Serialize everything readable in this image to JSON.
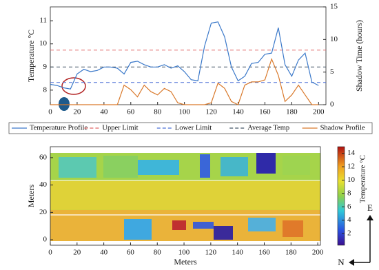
{
  "chart_data": [
    {
      "type": "line",
      "y_label": "Temperature °C",
      "y2_label": "Shadow Time (hours)",
      "x": [
        0,
        5,
        10,
        15,
        20,
        25,
        30,
        35,
        40,
        45,
        50,
        55,
        60,
        65,
        70,
        75,
        80,
        85,
        90,
        95,
        100,
        105,
        110,
        115,
        120,
        125,
        130,
        135,
        140,
        145,
        150,
        155,
        160,
        165,
        170,
        175,
        180,
        185,
        190,
        195,
        200
      ],
      "series": [
        {
          "name": "Temperature Profile",
          "color": "#3a78c9",
          "values": [
            8.25,
            8.2,
            8.1,
            8.05,
            8.7,
            8.9,
            8.8,
            8.85,
            9.0,
            9.0,
            8.95,
            8.7,
            9.2,
            9.25,
            9.1,
            9.0,
            9.0,
            9.1,
            8.95,
            9.05,
            8.8,
            8.45,
            8.4,
            9.9,
            10.9,
            10.95,
            10.3,
            9.0,
            8.4,
            8.6,
            9.15,
            9.2,
            9.55,
            9.6,
            10.7,
            9.1,
            8.6,
            9.3,
            9.6,
            8.35,
            8.2
          ]
        },
        {
          "name": "Shadow Profile",
          "color": "#d9792b",
          "axis": "y2",
          "values": [
            0,
            0,
            0,
            0,
            0,
            0,
            0,
            0,
            0,
            0,
            0,
            3.0,
            2.3,
            1.2,
            3.0,
            2.0,
            1.5,
            2.5,
            2.0,
            0.3,
            0,
            0,
            0,
            0,
            0.3,
            3.3,
            2.5,
            0.5,
            0,
            3.0,
            3.5,
            3.5,
            3.8,
            7.0,
            4.5,
            0.5,
            1.5,
            3.0,
            1.5,
            0,
            0
          ]
        }
      ],
      "reference_lines": [
        {
          "name": "Upper Limit",
          "color": "#e06666",
          "value": 9.73
        },
        {
          "name": "Lower Limit",
          "color": "#4a6fd6",
          "value": 8.33
        },
        {
          "name": "Average Temp",
          "color": "#445566",
          "value": 9.0
        }
      ],
      "xlim": [
        0,
        205.5
      ],
      "xticks": [
        0,
        20,
        40,
        60,
        80,
        100,
        120,
        140,
        160,
        180,
        200
      ],
      "ylim": [
        7.37,
        11.6
      ],
      "yticks": [
        8,
        9,
        10,
        11
      ],
      "y2lim": [
        0,
        15
      ],
      "y2ticks": [
        0,
        5,
        10,
        15
      ],
      "legend": "bottom"
    },
    {
      "type": "heatmap",
      "x_label": "Meters",
      "y_label": "Meters",
      "colorbar_label": "Temperature °C",
      "xlim": [
        0,
        202
      ],
      "xticks": [
        0,
        20,
        40,
        60,
        80,
        100,
        120,
        140,
        160,
        180,
        200
      ],
      "ylim": [
        -4,
        68
      ],
      "yticks": [
        0,
        20,
        40,
        60
      ],
      "clim": [
        0.25,
        15
      ],
      "cticks": [
        2,
        4,
        6,
        8,
        10,
        12,
        14
      ],
      "compass": [
        "E",
        "N"
      ]
    }
  ]
}
